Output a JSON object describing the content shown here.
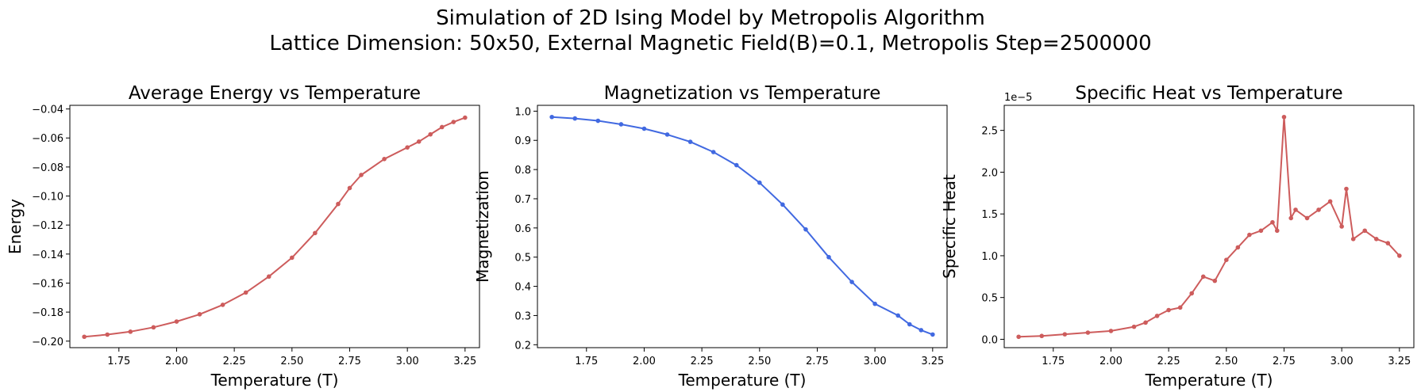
{
  "figure": {
    "title_line1": "Simulation of 2D Ising Model by Metropolis Algorithm",
    "title_line2": "Lattice Dimension: 50x50, External Magnetic Field(B)=0.1, Metropolis Step=2500000"
  },
  "chart_data": [
    {
      "type": "line",
      "title": "Average Energy vs Temperature",
      "xlabel": "Temperature (T)",
      "ylabel": "Energy",
      "color": "#cd5c5c",
      "xlim": [
        1.5375,
        3.3125
      ],
      "ylim": [
        -0.2045,
        -0.0375
      ],
      "xticks": [
        1.75,
        2.0,
        2.25,
        2.5,
        2.75,
        3.0,
        3.25
      ],
      "yticks": [
        -0.2,
        -0.18,
        -0.16,
        -0.14,
        -0.12,
        -0.1,
        -0.08,
        -0.06,
        -0.04
      ],
      "ytick_decimals": 2,
      "offset_text": "",
      "series": [
        {
          "x": [
            1.6,
            1.7,
            1.8,
            1.9,
            2.0,
            2.1,
            2.2,
            2.3,
            2.4,
            2.5,
            2.6,
            2.7,
            2.75,
            2.8,
            2.9,
            3.0,
            3.05,
            3.1,
            3.15,
            3.2,
            3.25
          ],
          "values": [
            -0.197,
            -0.1955,
            -0.1935,
            -0.1905,
            -0.1865,
            -0.1815,
            -0.175,
            -0.1665,
            -0.1555,
            -0.1425,
            -0.1255,
            -0.1055,
            -0.0945,
            -0.0855,
            -0.0745,
            -0.0665,
            -0.0625,
            -0.0575,
            -0.0525,
            -0.049,
            -0.046
          ]
        }
      ]
    },
    {
      "type": "line",
      "title": "Magnetization vs Temperature",
      "xlabel": "Temperature (T)",
      "ylabel": "Magnetization",
      "color": "#4169e1",
      "xlim": [
        1.5375,
        3.3125
      ],
      "ylim": [
        0.19,
        1.02
      ],
      "xticks": [
        1.75,
        2.0,
        2.25,
        2.5,
        2.75,
        3.0,
        3.25
      ],
      "yticks": [
        0.2,
        0.3,
        0.4,
        0.5,
        0.6,
        0.7,
        0.8,
        0.9,
        1.0
      ],
      "ytick_decimals": 1,
      "offset_text": "",
      "series": [
        {
          "x": [
            1.6,
            1.7,
            1.8,
            1.9,
            2.0,
            2.1,
            2.2,
            2.3,
            2.4,
            2.5,
            2.6,
            2.7,
            2.8,
            2.9,
            3.0,
            3.1,
            3.15,
            3.2,
            3.25
          ],
          "values": [
            0.98,
            0.975,
            0.967,
            0.955,
            0.94,
            0.92,
            0.895,
            0.86,
            0.815,
            0.755,
            0.68,
            0.595,
            0.5,
            0.415,
            0.34,
            0.3,
            0.27,
            0.25,
            0.235
          ]
        }
      ]
    },
    {
      "type": "line",
      "title": "Specific Heat vs Temperature",
      "xlabel": "Temperature (T)",
      "ylabel": "Specific Heat",
      "color": "#cd5c5c",
      "xlim": [
        1.5375,
        3.3125
      ],
      "ylim": [
        -1e-06,
        2.8e-05
      ],
      "xticks": [
        1.75,
        2.0,
        2.25,
        2.5,
        2.75,
        3.0,
        3.25
      ],
      "yticks": [
        0,
        5e-06,
        1e-05,
        1.5e-05,
        2e-05,
        2.5e-05
      ],
      "ytick_scale": 1e-05,
      "ytick_decimals": 1,
      "offset_text": "1e−5",
      "series": [
        {
          "x": [
            1.6,
            1.7,
            1.8,
            1.9,
            2.0,
            2.1,
            2.15,
            2.2,
            2.25,
            2.3,
            2.35,
            2.4,
            2.45,
            2.5,
            2.55,
            2.6,
            2.65,
            2.7,
            2.72,
            2.75,
            2.78,
            2.8,
            2.85,
            2.9,
            2.95,
            3.0,
            3.02,
            3.05,
            3.1,
            3.15,
            3.2,
            3.25
          ],
          "values": [
            3e-07,
            4e-07,
            6e-07,
            8e-07,
            1e-06,
            1.5e-06,
            2e-06,
            2.8e-06,
            3.5e-06,
            3.8e-06,
            5.5e-06,
            7.5e-06,
            7e-06,
            9.5e-06,
            1.1e-05,
            1.25e-05,
            1.3e-05,
            1.4e-05,
            1.3e-05,
            2.66e-05,
            1.45e-05,
            1.55e-05,
            1.45e-05,
            1.55e-05,
            1.65e-05,
            1.35e-05,
            1.8e-05,
            1.2e-05,
            1.3e-05,
            1.2e-05,
            1.15e-05,
            1e-05
          ]
        }
      ]
    }
  ]
}
